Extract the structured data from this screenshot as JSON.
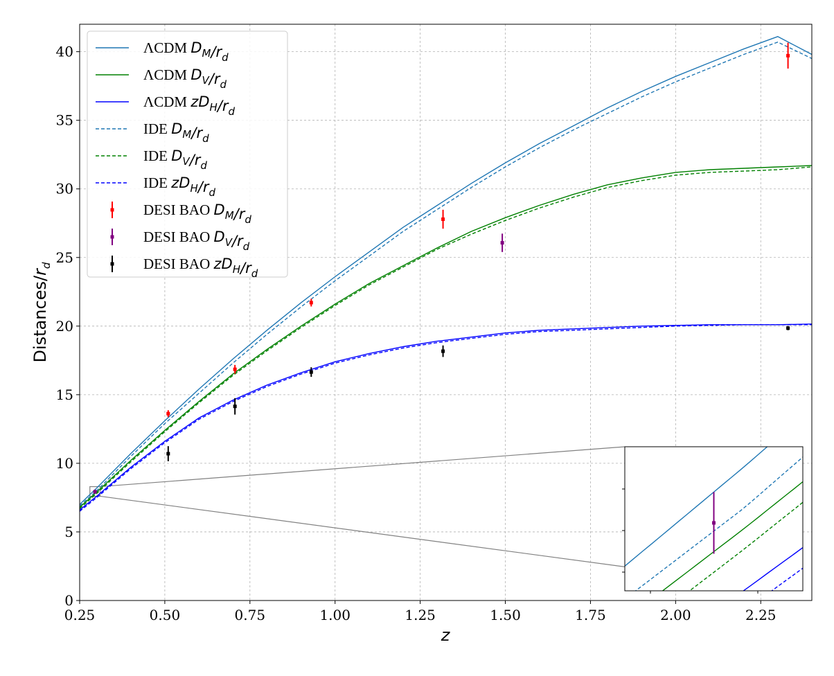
{
  "chart_data": {
    "type": "line",
    "xlabel": "z",
    "ylabel": "Distances/r_d",
    "xlim": [
      0.25,
      2.4
    ],
    "ylim": [
      0,
      42
    ],
    "grid": true,
    "legend_position": "top-left",
    "x_ticks": [
      "0.25",
      "0.50",
      "0.75",
      "1.00",
      "1.25",
      "1.50",
      "1.75",
      "2.00",
      "2.25"
    ],
    "y_ticks": [
      "0",
      "5",
      "10",
      "15",
      "20",
      "25",
      "30",
      "35",
      "40"
    ],
    "colors": {
      "dm": "#1f77b4",
      "dv": "#008000",
      "dh": "#0000ff",
      "desi_dm": "#ff0000",
      "desi_dv": "#800080",
      "desi_dh": "#000000"
    },
    "z_grid": [
      0.25,
      0.3,
      0.4,
      0.5,
      0.6,
      0.7,
      0.8,
      0.9,
      1.0,
      1.1,
      1.2,
      1.3,
      1.4,
      1.5,
      1.6,
      1.7,
      1.8,
      1.9,
      2.0,
      2.1,
      2.2,
      2.3,
      2.4
    ],
    "series": [
      {
        "name": "ΛCDM D_M/r_d",
        "legend_prefix": "ΛCDM ",
        "legend_math": "D_M/r_d",
        "color_key": "dm",
        "style": "solid",
        "y": [
          7.0,
          8.2,
          10.7,
          13.1,
          15.4,
          17.6,
          19.7,
          21.7,
          23.6,
          25.4,
          27.2,
          28.8,
          30.4,
          31.9,
          33.3,
          34.6,
          35.9,
          37.1,
          38.2,
          39.2,
          40.2,
          41.1,
          39.8
        ]
      },
      {
        "name": "ΛCDM D_V/r_d",
        "legend_prefix": "ΛCDM ",
        "legend_math": "D_V/r_d",
        "color_key": "dv",
        "style": "solid",
        "y": [
          6.8,
          7.9,
          10.2,
          12.4,
          14.5,
          16.5,
          18.3,
          20.0,
          21.6,
          23.1,
          24.4,
          25.7,
          26.9,
          27.9,
          28.8,
          29.6,
          30.3,
          30.8,
          31.2,
          31.4,
          31.5,
          31.6,
          31.7
        ]
      },
      {
        "name": "ΛCDM zD_H/r_d",
        "legend_prefix": "ΛCDM ",
        "legend_math": "zD_H/r_d",
        "color_key": "dh",
        "style": "solid",
        "y": [
          6.6,
          7.6,
          9.7,
          11.6,
          13.3,
          14.6,
          15.7,
          16.6,
          17.4,
          18.0,
          18.5,
          18.9,
          19.2,
          19.5,
          19.7,
          19.8,
          19.9,
          20.0,
          20.05,
          20.1,
          20.1,
          20.1,
          20.15
        ]
      },
      {
        "name": "IDE D_M/r_d",
        "legend_prefix": "IDE ",
        "legend_math": "D_M/r_d",
        "color_key": "dm",
        "style": "dashed",
        "y": [
          6.9,
          8.0,
          10.5,
          12.9,
          15.1,
          17.3,
          19.4,
          21.4,
          23.3,
          25.1,
          26.9,
          28.5,
          30.1,
          31.6,
          33.0,
          34.3,
          35.5,
          36.7,
          37.8,
          38.8,
          39.8,
          40.7,
          39.5
        ]
      },
      {
        "name": "IDE D_V/r_d",
        "legend_prefix": "IDE ",
        "legend_math": "D_V/r_d",
        "color_key": "dv",
        "style": "dashed",
        "y": [
          6.7,
          7.8,
          10.1,
          12.3,
          14.4,
          16.4,
          18.2,
          19.9,
          21.5,
          23.0,
          24.3,
          25.6,
          26.7,
          27.7,
          28.6,
          29.4,
          30.1,
          30.6,
          31.0,
          31.2,
          31.3,
          31.4,
          31.6
        ]
      },
      {
        "name": "IDE zD_H/r_d",
        "legend_prefix": "IDE ",
        "legend_math": "zD_H/r_d",
        "color_key": "dh",
        "style": "dashed",
        "y": [
          6.5,
          7.5,
          9.6,
          11.5,
          13.2,
          14.5,
          15.6,
          16.5,
          17.3,
          17.9,
          18.4,
          18.8,
          19.1,
          19.4,
          19.6,
          19.7,
          19.8,
          19.9,
          20.0,
          20.05,
          20.1,
          20.1,
          20.1
        ]
      }
    ],
    "points": [
      {
        "name": "DESI BAO D_M/r_d",
        "legend_prefix": "DESI BAO ",
        "legend_math": "D_M/r_d",
        "color_key": "desi_dm",
        "data": [
          {
            "x": 0.51,
            "y": 13.62,
            "err": 0.25
          },
          {
            "x": 0.706,
            "y": 16.85,
            "err": 0.32
          },
          {
            "x": 0.93,
            "y": 21.71,
            "err": 0.28
          },
          {
            "x": 1.317,
            "y": 27.79,
            "err": 0.69
          },
          {
            "x": 2.33,
            "y": 39.71,
            "err": 0.94
          }
        ]
      },
      {
        "name": "DESI BAO D_V/r_d",
        "legend_prefix": "DESI BAO ",
        "legend_math": "D_V/r_d",
        "color_key": "desi_dv",
        "data": [
          {
            "x": 0.295,
            "y": 7.93,
            "err": 0.15
          },
          {
            "x": 1.491,
            "y": 26.07,
            "err": 0.67
          }
        ]
      },
      {
        "name": "DESI BAO zD_H/r_d",
        "legend_prefix": "DESI BAO ",
        "legend_math": "zD_H/r_d",
        "color_key": "desi_dh",
        "data": [
          {
            "x": 0.51,
            "y": 10.7,
            "err": 0.55
          },
          {
            "x": 0.706,
            "y": 14.15,
            "err": 0.6
          },
          {
            "x": 0.93,
            "y": 16.65,
            "err": 0.35
          },
          {
            "x": 1.317,
            "y": 18.17,
            "err": 0.42
          },
          {
            "x": 2.33,
            "y": 19.85,
            "err": 0.15
          }
        ]
      }
    ],
    "inset": {
      "xlim": [
        0.28,
        0.31
      ],
      "ylim": [
        7.6,
        8.3
      ],
      "data_point": {
        "x": 0.295,
        "y": 7.93,
        "err": 0.15
      }
    }
  }
}
